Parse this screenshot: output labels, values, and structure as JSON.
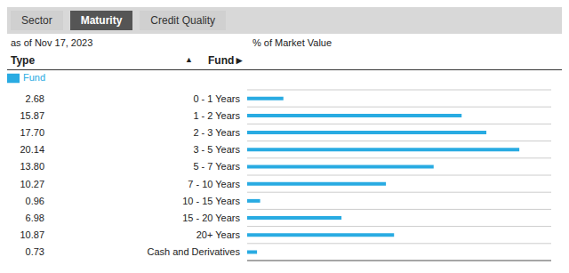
{
  "chart_data": {
    "type": "bar",
    "orientation": "horizontal",
    "subtitle": "as of Nov 17, 2023",
    "annotations": [
      "Sector",
      "Maturity",
      "Credit Quality",
      "% of Market Value",
      "Type",
      "▲",
      "Fund►"
    ],
    "categories": [
      "0 - 1 Years",
      "1 - 2 Years",
      "2 - 3 Years",
      "3 - 5 Years",
      "5 - 7 Years",
      "7 - 10 Years",
      "10 - 15 Years",
      "15 - 20 Years",
      "20+ Years",
      "Cash and Derivatives"
    ],
    "series": [
      {
        "name": "Fund",
        "color": "#29ABE2",
        "values": [
          2.68,
          15.87,
          17.7,
          20.14,
          13.8,
          10.27,
          0.96,
          6.98,
          10.87,
          0.73
        ],
        "value_labels": [
          "2.68",
          "15.87",
          "17.70",
          "20.14",
          "13.80",
          "10.27",
          "0.96",
          "6.98",
          "10.87",
          "0.73"
        ]
      }
    ],
    "xlim": [
      0,
      22.5
    ],
    "grid": true,
    "legend": "upper left",
    "data_labels": true,
    "tick_labels": "y"
  }
}
